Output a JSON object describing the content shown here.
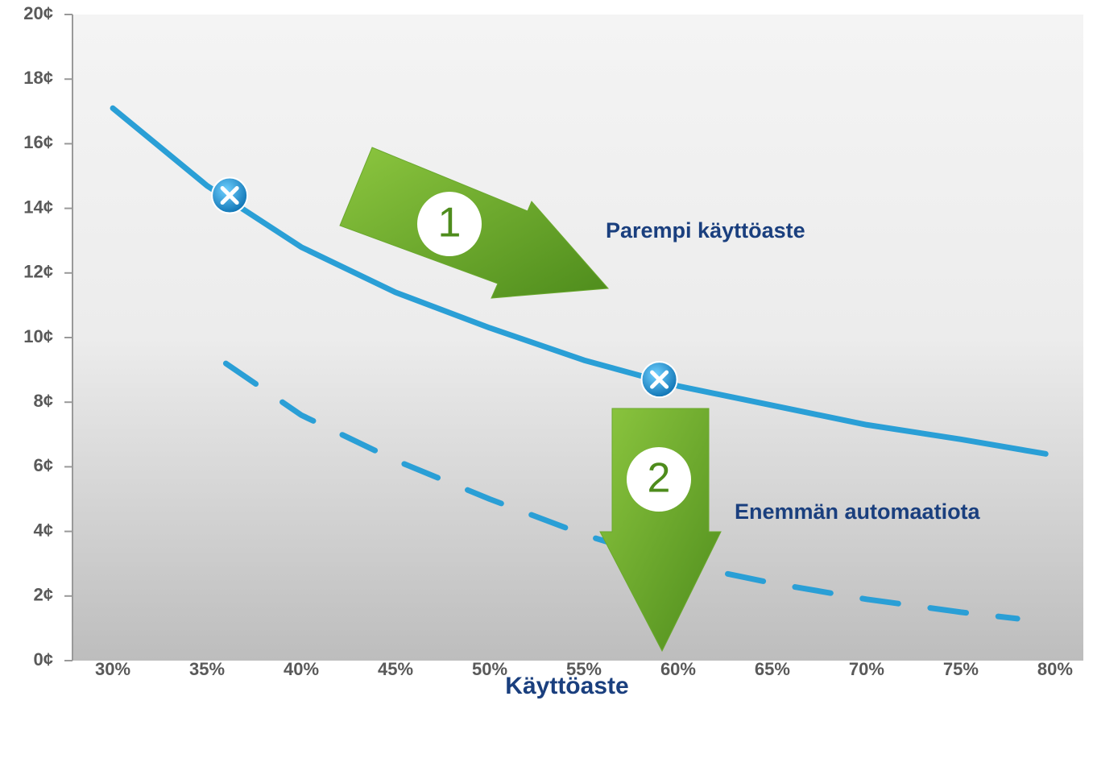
{
  "chart_data": {
    "type": "line",
    "xlabel": "Käyttöaste",
    "xlim": [
      27.86,
      81.5
    ],
    "ylim": [
      0,
      20
    ],
    "xticks": [
      {
        "value": 30,
        "label": "30%"
      },
      {
        "value": 35,
        "label": "35%"
      },
      {
        "value": 40,
        "label": "40%"
      },
      {
        "value": 45,
        "label": "45%"
      },
      {
        "value": 50,
        "label": "50%"
      },
      {
        "value": 55,
        "label": "55%"
      },
      {
        "value": 60,
        "label": "60%"
      },
      {
        "value": 65,
        "label": "65%"
      },
      {
        "value": 70,
        "label": "70%"
      },
      {
        "value": 75,
        "label": "75%"
      },
      {
        "value": 80,
        "label": "80%"
      }
    ],
    "yticks": [
      {
        "value": 0,
        "label": "0¢"
      },
      {
        "value": 2,
        "label": "2¢"
      },
      {
        "value": 4,
        "label": "4¢"
      },
      {
        "value": 6,
        "label": "6¢"
      },
      {
        "value": 8,
        "label": "8¢"
      },
      {
        "value": 10,
        "label": "10¢"
      },
      {
        "value": 12,
        "label": "12¢"
      },
      {
        "value": 14,
        "label": "14¢"
      },
      {
        "value": 16,
        "label": "16¢"
      },
      {
        "value": 18,
        "label": "18¢"
      },
      {
        "value": 20,
        "label": "20¢"
      }
    ],
    "series": [
      {
        "color": "#2a9fd6",
        "dashed": false,
        "x": [
          30,
          35,
          40,
          45,
          50,
          55,
          60,
          65,
          70,
          75,
          79.5
        ],
        "values": [
          17.1,
          14.7,
          12.8,
          11.4,
          10.3,
          9.3,
          8.5,
          7.9,
          7.3,
          6.85,
          6.4
        ]
      },
      {
        "color": "#2a9fd6",
        "dashed": true,
        "x": [
          36,
          40,
          45,
          50,
          55,
          60,
          65,
          70,
          75,
          78
        ],
        "values": [
          9.2,
          7.6,
          6.2,
          5.0,
          3.9,
          3.0,
          2.4,
          1.9,
          1.5,
          1.3
        ]
      }
    ],
    "markers": {
      "x": [
        36.2,
        59
      ],
      "values": [
        14.4,
        8.7
      ]
    },
    "annotations": [
      "1",
      "Parempi käyttöaste",
      "2",
      "Enemmän automaatiota"
    ]
  }
}
